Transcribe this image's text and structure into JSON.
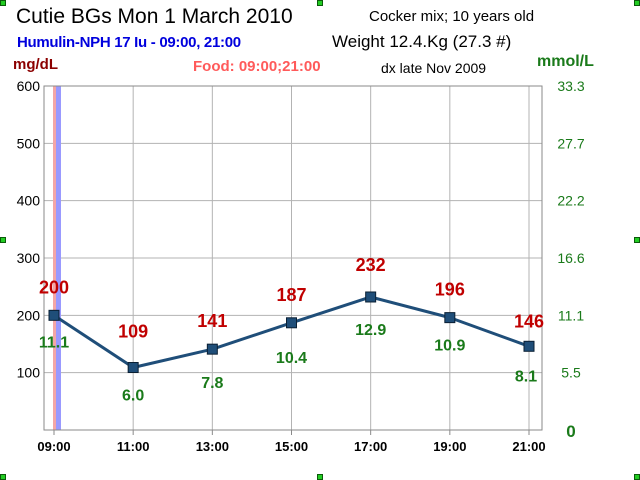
{
  "header": {
    "title": "Cutie BGs  Mon 1 March  2010",
    "insulin": "Humulin-NPH 17 Iu - 09:00, 21:00",
    "food": "Food: 09:00;21:00",
    "breed": "Cocker mix; 10 years old",
    "weight": "Weight 12.4.Kg (27.3 #)",
    "diagnosis": "dx late Nov 2009"
  },
  "chart_data": {
    "type": "line",
    "ylabel_left": "mg/dL",
    "ylabel_right": "mmol/L",
    "x": [
      "09:00",
      "11:00",
      "13:00",
      "15:00",
      "17:00",
      "19:00",
      "21:00"
    ],
    "series": [
      {
        "values": [
          200,
          109,
          141,
          187,
          232,
          196,
          146
        ],
        "mmol": [
          "11.1",
          "6.0",
          "7.8",
          "10.4",
          "12.9",
          "10.9",
          "8.1"
        ]
      }
    ],
    "ylim": [
      0,
      600
    ],
    "yticks_left": [
      "100",
      "200",
      "300",
      "400",
      "500",
      "600"
    ],
    "yticks_right": [
      "0",
      "5.5",
      "11.1",
      "16.6",
      "22.2",
      "27.7",
      "33.3"
    ],
    "grid": true,
    "colors": {
      "line": "#1f4e79",
      "marker": "#1f4e79",
      "mgdl_label": "#c00000",
      "mmol_label": "#1a7a1a",
      "grid": "#b3b3b3",
      "insulin_band": "#9999ff",
      "food_band": "#f4a6a6"
    }
  }
}
